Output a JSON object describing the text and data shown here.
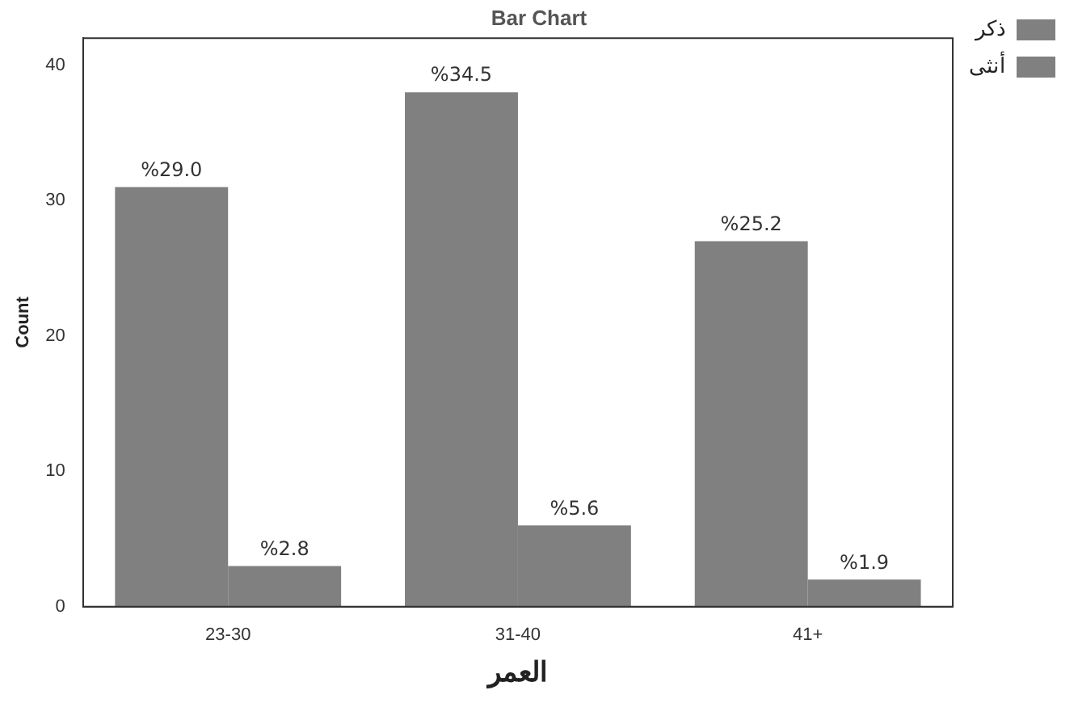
{
  "chart_data": {
    "type": "bar",
    "title": "Bar Chart",
    "xlabel": "العمر",
    "ylabel": "Count",
    "categories": [
      "23-30",
      "31-40",
      "41+"
    ],
    "series": [
      {
        "name": "ذكر",
        "color": "#808080",
        "values": [
          31,
          38,
          27
        ]
      },
      {
        "name": "أنثى",
        "color": "#808080",
        "values": [
          3,
          6,
          2
        ]
      }
    ],
    "annotations": [
      {
        "text": "%29.0",
        "x": "23-30",
        "y": 31
      },
      {
        "text": "%34.5",
        "x": "31-40",
        "y": 38
      },
      {
        "text": "%25.2",
        "x": "41+",
        "y": 27
      },
      {
        "text": "%2.8",
        "x": "23-30",
        "y": 3
      },
      {
        "text": "%5.6",
        "x": "31-40",
        "y": 6
      },
      {
        "text": "%1.9",
        "x": "41+",
        "y": 2
      }
    ],
    "ylim": [
      0,
      42
    ],
    "yticks": [
      0,
      10,
      20,
      30,
      40
    ],
    "grid": false,
    "legend": "top right"
  }
}
